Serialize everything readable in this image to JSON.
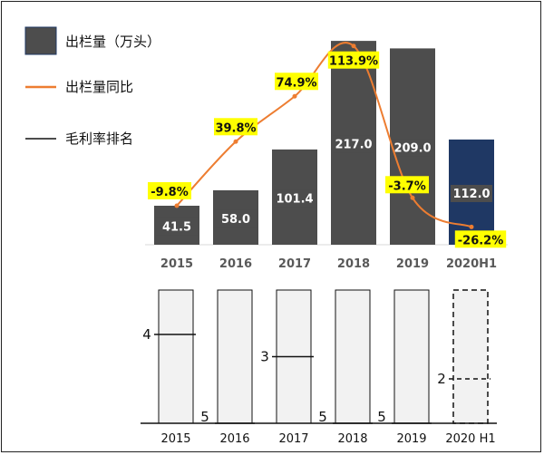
{
  "legend": {
    "volume": "出栏量（万头）",
    "yoy": "出栏量同比",
    "rank": "毛利率排名"
  },
  "colors": {
    "bar": "#4d4d4d",
    "bar_highlight": "#1f3864",
    "line": "#ed7d31",
    "label_bg": "#ffff00",
    "rank_box": "#f2f2f2"
  },
  "chart_data": [
    {
      "type": "bar",
      "categories": [
        "2015",
        "2016",
        "2017",
        "2018",
        "2019",
        "2020H1"
      ],
      "series": [
        {
          "name": "出栏量（万头）",
          "values": [
            41.5,
            58.0,
            101.4,
            217.0,
            209.0,
            112.0
          ],
          "labels": [
            "41.5",
            "58.0",
            "101.4",
            "217.0",
            "209.0",
            "112.0"
          ]
        },
        {
          "name": "出栏量同比",
          "type": "line",
          "values": [
            -9.8,
            39.8,
            74.9,
            113.9,
            -3.7,
            -26.2
          ],
          "labels": [
            "-9.8%",
            "39.8%",
            "74.9%",
            "113.9%",
            "-3.7%",
            "-26.2%"
          ]
        }
      ],
      "ylim_volume": [
        0,
        220
      ],
      "ylim_yoy": [
        -40,
        120
      ],
      "highlight_index": 5
    },
    {
      "type": "bar",
      "categories": [
        "2015",
        "2016",
        "2017",
        "2018",
        "2019",
        "2020 H1"
      ],
      "series": [
        {
          "name": "毛利率排名",
          "values": [
            4,
            5,
            3,
            5,
            5,
            2
          ],
          "labels": [
            "4",
            "5",
            "3",
            "5",
            "5",
            "2"
          ]
        }
      ],
      "ylim": [
        0,
        6
      ],
      "dashed_index": 5
    }
  ]
}
